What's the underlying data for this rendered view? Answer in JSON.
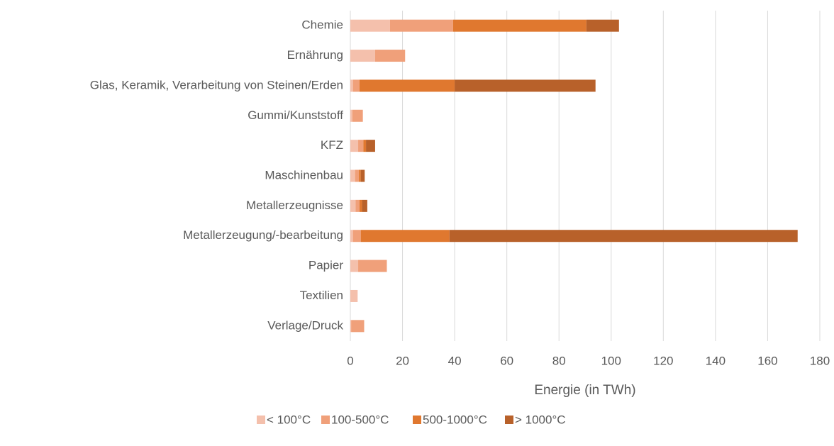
{
  "chart_data": {
    "type": "bar",
    "orientation": "horizontal",
    "stacked": true,
    "x_label": "Energie (in TWh)",
    "categories": [
      "Chemie",
      "Ernährung",
      "Glas, Keramik, Verarbeitung von Steinen/Erden",
      "Gummi/Kunststoff",
      "KFZ",
      "Maschinenbau",
      "Metallerzeugnisse",
      "Metallerzeugung/-bearbeitung",
      "Papier",
      "Textilien",
      "Verlage/Druck"
    ],
    "series": [
      {
        "name": "< 100°C",
        "color": "#f4c0ac",
        "values": [
          15.2,
          9.5,
          1,
          0.8,
          3,
          1.8,
          2,
          1,
          3,
          2.8,
          0.3
        ]
      },
      {
        "name": "100-500°C",
        "color": "#f0a07a",
        "values": [
          24.2,
          11.5,
          2.5,
          4,
          2,
          1.5,
          1.5,
          3,
          11,
          0,
          5
        ]
      },
      {
        "name": "500-1000°C",
        "color": "#e0782f",
        "values": [
          51.1,
          0,
          36.5,
          0,
          1,
          0.7,
          1,
          34,
          0,
          0,
          0
        ]
      },
      {
        "name": "> 1000°C",
        "color": "#b8612a",
        "values": [
          12.5,
          0,
          54,
          0,
          3.5,
          1.5,
          2,
          133.5,
          0,
          0,
          0
        ]
      }
    ],
    "xlim": [
      0,
      180
    ],
    "xticks": [
      0,
      20,
      40,
      60,
      80,
      100,
      120,
      140,
      160,
      180
    ],
    "grid": true,
    "legend": "bottom"
  }
}
